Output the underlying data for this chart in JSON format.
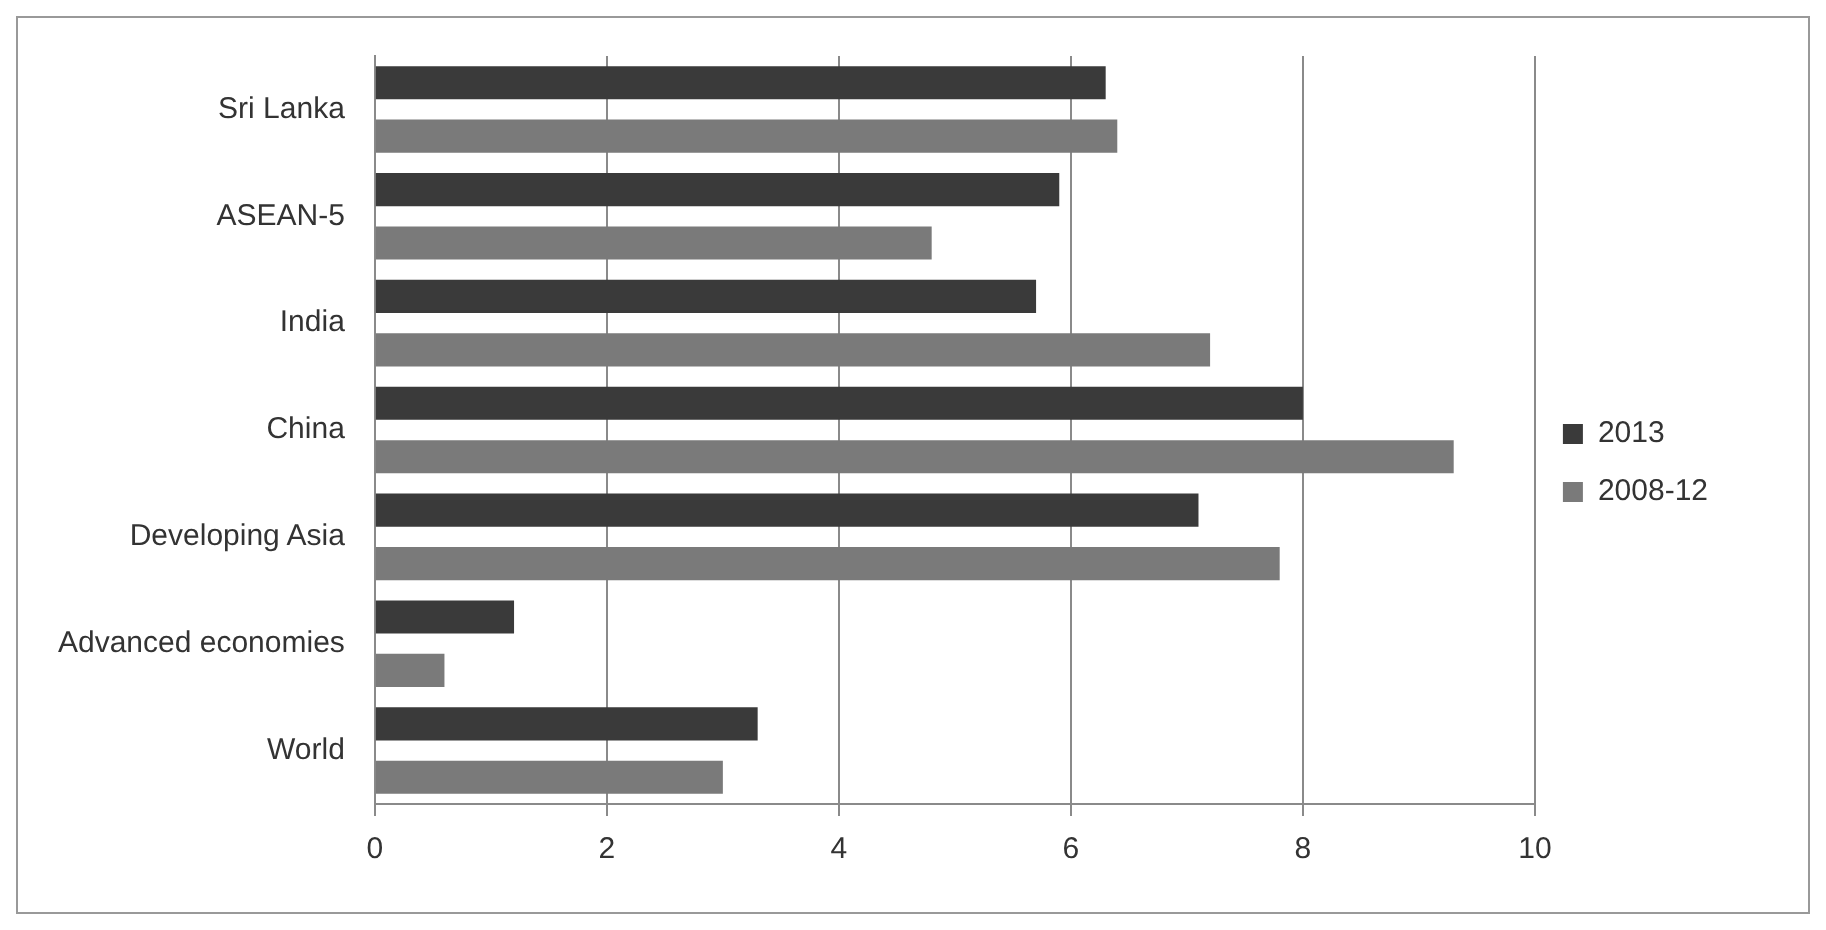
{
  "chart_data": {
    "type": "bar",
    "orientation": "horizontal",
    "categories": [
      "Sri Lanka",
      "ASEAN-5",
      "India",
      "China",
      "Developing Asia",
      "Advanced economies",
      "World"
    ],
    "series": [
      {
        "name": "2013",
        "color": "#3a3a3a",
        "values": [
          6.3,
          5.9,
          5.7,
          8.0,
          7.1,
          1.2,
          3.3
        ]
      },
      {
        "name": "2008-12",
        "color": "#7a7a7a",
        "values": [
          6.4,
          4.8,
          7.2,
          9.3,
          7.8,
          0.6,
          3.0
        ]
      }
    ],
    "xlim": [
      0,
      10
    ],
    "xticks": [
      0,
      2,
      4,
      6,
      8,
      10
    ],
    "grid": "x",
    "legend": "right"
  }
}
